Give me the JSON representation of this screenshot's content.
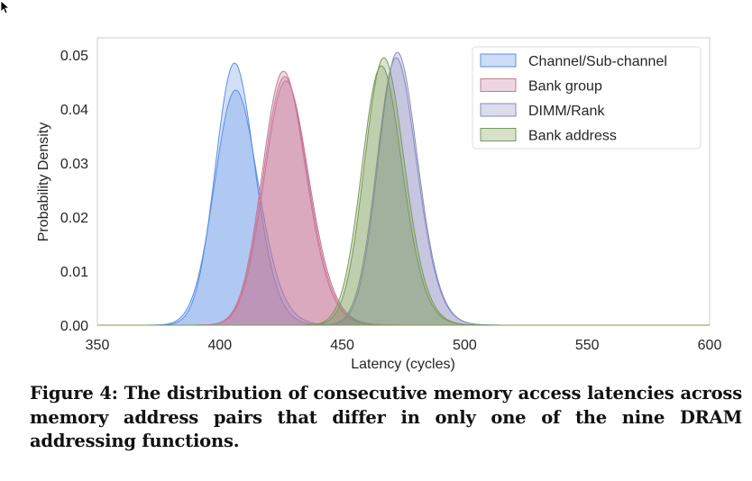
{
  "chart_data": {
    "type": "area",
    "xlabel": "Latency (cycles)",
    "ylabel": "Probability Density",
    "xlim": [
      350,
      600
    ],
    "ylim": [
      0,
      0.053
    ],
    "xticks": [
      "350",
      "400",
      "450",
      "500",
      "550",
      "600"
    ],
    "yticks": [
      "0.00",
      "0.01",
      "0.02",
      "0.03",
      "0.04",
      "0.05"
    ],
    "grid": false,
    "legend_position": "top-right",
    "series": [
      {
        "name": "Channel/Sub-channel",
        "color": "#5b8fe6",
        "curves": [
          {
            "mean": 406,
            "std": 7.8,
            "peak": 0.0485
          },
          {
            "mean": 406.5,
            "std": 8.6,
            "peak": 0.0435
          }
        ]
      },
      {
        "name": "Bank group",
        "color": "#c77897",
        "curves": [
          {
            "mean": 426,
            "std": 8.6,
            "peak": 0.047
          },
          {
            "mean": 426.5,
            "std": 8.7,
            "peak": 0.046
          },
          {
            "mean": 427,
            "std": 8.8,
            "peak": 0.0452
          }
        ]
      },
      {
        "name": "DIMM/Rank",
        "color": "#8a8abf",
        "curves": [
          {
            "mean": 472.5,
            "std": 7.8,
            "peak": 0.0505
          },
          {
            "mean": 472,
            "std": 7.9,
            "peak": 0.0495
          }
        ]
      },
      {
        "name": "Bank address",
        "color": "#7a9a56",
        "curves": [
          {
            "mean": 467,
            "std": 7.9,
            "peak": 0.0495
          },
          {
            "mean": 466,
            "std": 8.0,
            "peak": 0.048
          }
        ]
      }
    ]
  },
  "caption": "Figure 4: The distribution of consecutive memory access latencies across memory address pairs that differ in only one of the nine DRAM addressing functions."
}
